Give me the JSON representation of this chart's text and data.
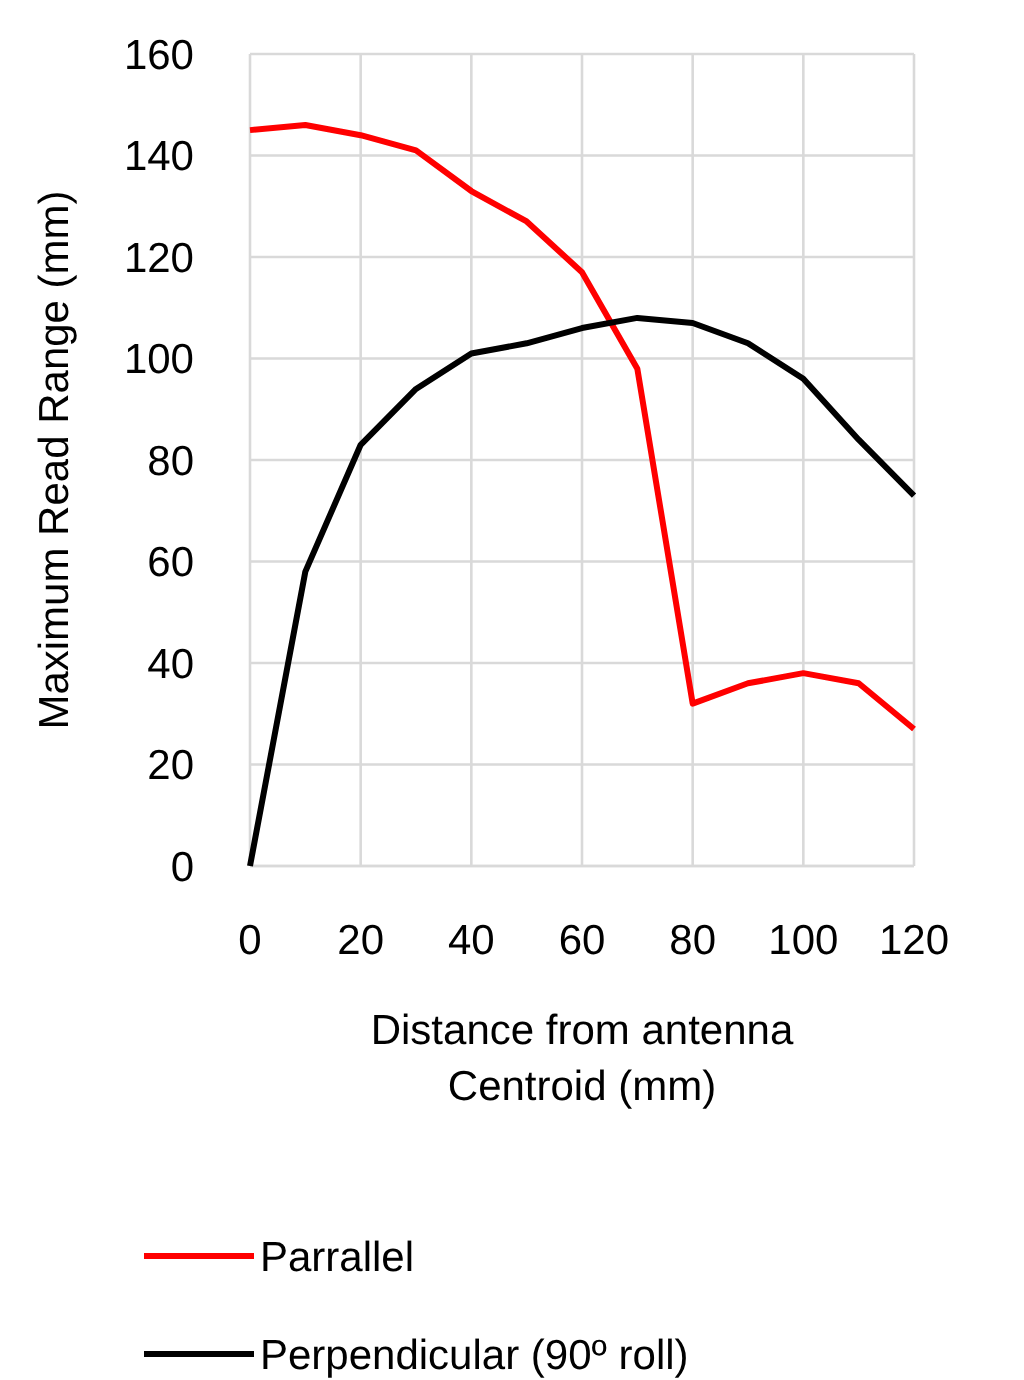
{
  "chart_data": {
    "type": "line",
    "xlabel": "Distance from antenna Centroid (mm)",
    "ylabel": "Maximum Read Range (mm)",
    "x": [
      0,
      10,
      20,
      30,
      40,
      50,
      60,
      70,
      80,
      90,
      100,
      110,
      120
    ],
    "series": [
      {
        "name": "Parrallel",
        "color": "#ff0000",
        "values": [
          145,
          146,
          144,
          141,
          133,
          127,
          117,
          98,
          32,
          36,
          38,
          36,
          27
        ]
      },
      {
        "name": "Perpendicular (90º roll)",
        "color": "#000000",
        "values": [
          0,
          58,
          83,
          94,
          101,
          103,
          106,
          108,
          107,
          103,
          96,
          84,
          73
        ]
      }
    ],
    "xlim": [
      0,
      120
    ],
    "xticks": [
      0,
      20,
      40,
      60,
      80,
      100,
      120
    ],
    "ylim": [
      0,
      160
    ],
    "yticks": [
      0,
      20,
      40,
      60,
      80,
      100,
      120,
      140,
      160
    ],
    "grid": true,
    "legend": "bottom",
    "marker": "none",
    "line_style": "solid"
  }
}
